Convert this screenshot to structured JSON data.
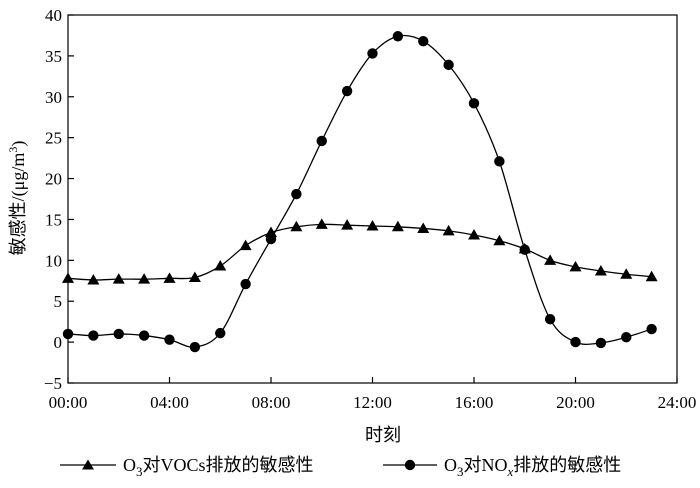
{
  "chart_data": {
    "type": "line",
    "xlabel": "时刻",
    "ylabel": "敏感性/(μg/m³)",
    "ylabel_parts": {
      "main": "敏感性/(μg/m",
      "sup": "3",
      "tail": ")"
    },
    "xlim": [
      0,
      24
    ],
    "ylim": [
      -5,
      40
    ],
    "x_ticks": [
      "00:00",
      "04:00",
      "08:00",
      "12:00",
      "16:00",
      "20:00",
      "24:00"
    ],
    "y_ticks": [
      "−5",
      "0",
      "5",
      "10",
      "15",
      "20",
      "25",
      "30",
      "35",
      "40"
    ],
    "grid": false,
    "legend_position": "bottom",
    "x": [
      0,
      1,
      2,
      3,
      4,
      5,
      6,
      7,
      8,
      9,
      10,
      11,
      12,
      13,
      14,
      15,
      16,
      17,
      18,
      19,
      20,
      21,
      22,
      23
    ],
    "series": [
      {
        "name": "O₃对VOCs排放的敏感性",
        "name_parts": {
          "pre": "O",
          "sub": "3",
          "post": "对VOCs排放的敏感性"
        },
        "marker": "triangle",
        "values": [
          7.8,
          7.6,
          7.7,
          7.7,
          7.8,
          7.9,
          9.3,
          11.8,
          13.4,
          14.1,
          14.4,
          14.3,
          14.2,
          14.1,
          13.9,
          13.6,
          13.1,
          12.4,
          11.4,
          10.0,
          9.2,
          8.7,
          8.3,
          8.0
        ]
      },
      {
        "name": "O₃对NOₓ排放的敏感性",
        "name_parts": {
          "pre": "O",
          "sub": "3",
          "post": "对NO",
          "sub2": "x",
          "post2": "排放的敏感性"
        },
        "marker": "circle",
        "values": [
          1.0,
          0.8,
          1.0,
          0.8,
          0.3,
          -0.6,
          1.1,
          7.1,
          12.6,
          18.1,
          24.6,
          30.7,
          35.3,
          37.4,
          36.8,
          33.9,
          29.2,
          22.1,
          11.3,
          2.8,
          0.0,
          -0.1,
          0.6,
          1.6
        ]
      }
    ]
  }
}
